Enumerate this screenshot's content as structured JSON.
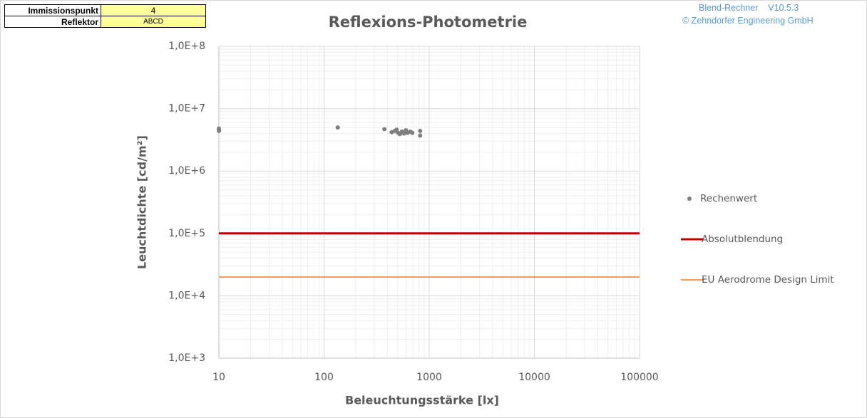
{
  "header": {
    "rows": [
      [
        "Immissionspunkt",
        "4"
      ],
      [
        "Reflektor",
        "ABCD"
      ]
    ],
    "app": "Blend-Rechner    V10.5.3",
    "copyright": "© Zehndorfer Engineering GmbH"
  },
  "chart_data": {
    "type": "scatter",
    "title": "Reflexions-Photometrie",
    "x_label": "Beleuchtungsstärke [lx]",
    "y_label": "Leuchtdichte [cd/m²]",
    "xlog": true,
    "ylog": true,
    "grid": true,
    "minor_grid": true,
    "legend": "right",
    "xlim": [
      10,
      100000
    ],
    "xticks": [
      10,
      100,
      1000,
      10000,
      100000
    ],
    "ylim": [
      1000,
      100000000
    ],
    "yticks": [
      {
        "value": 1000,
        "label": "1,0E+3"
      },
      {
        "value": 10000,
        "label": "1,0E+4"
      },
      {
        "value": 100000,
        "label": "1,0E+5"
      },
      {
        "value": 1000000,
        "label": "1,0E+6"
      },
      {
        "value": 10000000,
        "label": "1,0E+7"
      },
      {
        "value": 100000000,
        "label": "1,0E+8"
      }
    ],
    "series": [
      {
        "name": "Rechenwert",
        "type": "scatter",
        "color": "#7f7f7f",
        "x": [
          10,
          10,
          10,
          135,
          375,
          440,
          470,
          490,
          505,
          525,
          550,
          575,
          600,
          625,
          660,
          690,
          820,
          820
        ],
        "values": [
          4800000,
          4600000,
          4400000,
          5000000,
          4700000,
          4200000,
          4400000,
          4600000,
          4100000,
          3900000,
          4300000,
          4000000,
          4500000,
          4100000,
          4300000,
          4100000,
          4400000,
          3700000
        ]
      },
      {
        "name": "Absolutblendung",
        "type": "line",
        "color": "#c00000",
        "width": 3,
        "x": [
          10,
          100000
        ],
        "values": [
          100000,
          100000
        ]
      },
      {
        "name": "EU Aerodrome Design Limit",
        "type": "line",
        "color": "#ed7d31",
        "width": 1.5,
        "x": [
          10,
          100000
        ],
        "values": [
          20000,
          20000
        ]
      }
    ]
  }
}
